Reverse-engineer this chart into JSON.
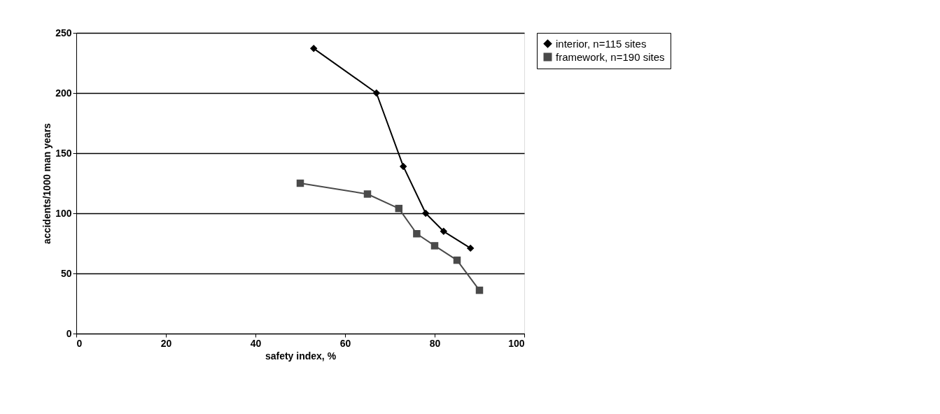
{
  "chart_data": {
    "type": "line",
    "xlabel": "safety index, %",
    "ylabel": "accidents/1000 man years",
    "xlim": [
      0,
      100
    ],
    "xticks": [
      0,
      20,
      40,
      60,
      80,
      100
    ],
    "ylim": [
      0,
      250
    ],
    "yticks": [
      0,
      50,
      100,
      150,
      200,
      250
    ],
    "grid": "y",
    "legend": "right",
    "line_style": "solid",
    "series": [
      {
        "name": "interior, n=115 sites",
        "color": "#000000",
        "marker": "diamond",
        "x": [
          53,
          67,
          73,
          78,
          82,
          88
        ],
        "values": [
          237,
          200,
          139,
          100,
          85,
          71
        ]
      },
      {
        "name": "framework, n=190 sites",
        "color": "#4a4a4a",
        "marker": "square",
        "x": [
          50,
          65,
          72,
          76,
          80,
          85,
          90
        ],
        "values": [
          125,
          116,
          104,
          83,
          73,
          61,
          36
        ]
      }
    ]
  }
}
